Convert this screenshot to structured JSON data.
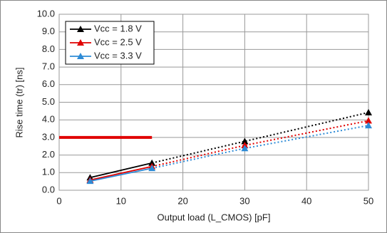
{
  "chart_data": {
    "type": "line",
    "x_label": "Output load (L_CMOS) [pF]",
    "y_label": "Rise time (tr) [ns]",
    "x": [
      5,
      15,
      30,
      50
    ],
    "dotted_after_x": 15,
    "series": [
      {
        "name": "Vcc = 1.8 V",
        "color": "#000000",
        "values": [
          0.72,
          1.55,
          2.78,
          4.42
        ]
      },
      {
        "name": "Vcc = 2.5 V",
        "color": "#e00000",
        "values": [
          0.58,
          1.35,
          2.55,
          3.95
        ]
      },
      {
        "name": "Vcc = 3.3 V",
        "color": "#2e8bd6",
        "values": [
          0.52,
          1.25,
          2.38,
          3.68
        ]
      }
    ],
    "reference_line": {
      "x": [
        0,
        15
      ],
      "y": 3.0,
      "color": "#e00000"
    },
    "xlim": [
      0,
      50
    ],
    "xticks": [
      0,
      10,
      20,
      30,
      40,
      50
    ],
    "ylim": [
      0,
      10
    ],
    "yticks": [
      {
        "value": 0,
        "label": "0.0"
      },
      {
        "value": 1,
        "label": "1.0"
      },
      {
        "value": 2,
        "label": "2.0"
      },
      {
        "value": 3,
        "label": "3.0"
      },
      {
        "value": 4,
        "label": "4.0"
      },
      {
        "value": 5,
        "label": "5.0"
      },
      {
        "value": 6,
        "label": "6.0"
      },
      {
        "value": 7,
        "label": "7.0"
      },
      {
        "value": 8,
        "label": "8.0"
      },
      {
        "value": 9,
        "label": "9.0"
      },
      {
        "value": 10,
        "label": "10.0"
      }
    ],
    "grid": true,
    "legend": "top-left"
  }
}
